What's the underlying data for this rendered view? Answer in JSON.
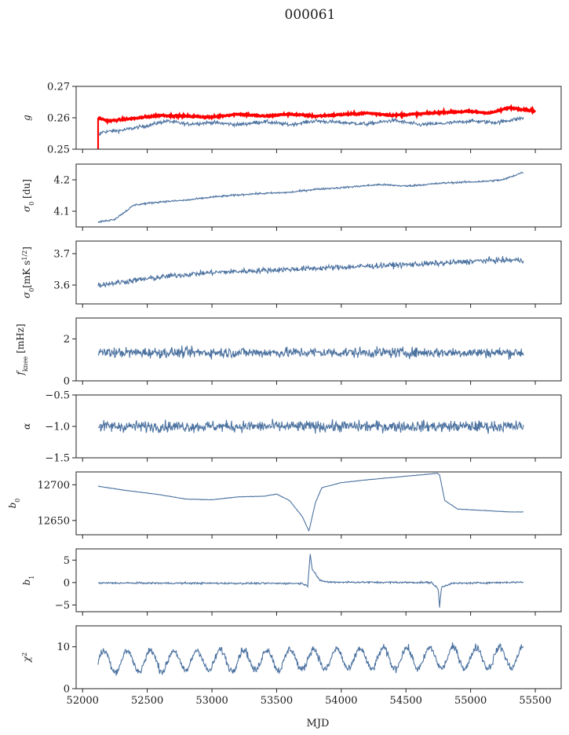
{
  "figure": {
    "title": "000061",
    "xlabel": "MJD"
  },
  "chart_data": {
    "type": "line",
    "xlim": [
      51950,
      55700
    ],
    "xticks": [
      52000,
      52500,
      53000,
      53500,
      54000,
      54500,
      55000,
      55500
    ],
    "xtick_labels": [
      "52000",
      "52500",
      "53000",
      "53500",
      "54000",
      "54500",
      "55000",
      "55500"
    ],
    "xrange": [
      52120,
      55410
    ],
    "line_color": "#4c72a0",
    "highlight_color": "#ff0000",
    "panels": [
      {
        "ylabel": "g",
        "ylim": [
          0.25,
          0.27
        ],
        "yticks": [
          0.25,
          0.26,
          0.27
        ],
        "ytick_labels": [
          "0.25",
          "0.26",
          "0.27"
        ],
        "series": [
          {
            "color": "#4c72a0",
            "points": [
              [
                52120,
                0.254
              ],
              [
                52150,
                0.2555
              ],
              [
                52300,
                0.256
              ],
              [
                52500,
                0.2575
              ],
              [
                52650,
                0.259
              ],
              [
                52800,
                0.258
              ],
              [
                53000,
                0.2585
              ],
              [
                53200,
                0.2578
              ],
              [
                53400,
                0.2588
              ],
              [
                53600,
                0.2578
              ],
              [
                53800,
                0.259
              ],
              [
                54000,
                0.2585
              ],
              [
                54200,
                0.258
              ],
              [
                54400,
                0.2592
              ],
              [
                54600,
                0.2578
              ],
              [
                54800,
                0.2582
              ],
              [
                55000,
                0.259
              ],
              [
                55200,
                0.2585
              ],
              [
                55410,
                0.26
              ]
            ],
            "noise": 0.0006
          },
          {
            "color": "#ff0000",
            "points": [
              [
                52120,
                0.26
              ],
              [
                52200,
                0.259
              ],
              [
                52400,
                0.2598
              ],
              [
                52600,
                0.2608
              ],
              [
                52800,
                0.2605
              ],
              [
                53000,
                0.2602
              ],
              [
                53200,
                0.2612
              ],
              [
                53400,
                0.2605
              ],
              [
                53600,
                0.2612
              ],
              [
                53800,
                0.2605
              ],
              [
                54000,
                0.261
              ],
              [
                54200,
                0.2615
              ],
              [
                54400,
                0.2608
              ],
              [
                54600,
                0.2612
              ],
              [
                54800,
                0.2618
              ],
              [
                55000,
                0.262
              ],
              [
                55150,
                0.2615
              ],
              [
                55300,
                0.2632
              ],
              [
                55500,
                0.2622
              ]
            ],
            "noise": 0.0003,
            "width": 3.2
          }
        ]
      },
      {
        "ylabel": "σ0 [du]",
        "ylim": [
          4.05,
          4.25
        ],
        "yticks": [
          4.1,
          4.2
        ],
        "ytick_labels": [
          "4.1",
          "4.2"
        ],
        "series": [
          {
            "color": "#4c72a0",
            "points": [
              [
                52120,
                4.065
              ],
              [
                52250,
                4.075
              ],
              [
                52400,
                4.12
              ],
              [
                52600,
                4.13
              ],
              [
                52800,
                4.135
              ],
              [
                53000,
                4.145
              ],
              [
                53300,
                4.155
              ],
              [
                53600,
                4.16
              ],
              [
                53800,
                4.17
              ],
              [
                54000,
                4.175
              ],
              [
                54300,
                4.185
              ],
              [
                54500,
                4.18
              ],
              [
                54800,
                4.19
              ],
              [
                55100,
                4.195
              ],
              [
                55250,
                4.2
              ],
              [
                55410,
                4.225
              ]
            ],
            "noise": 0.003
          }
        ]
      },
      {
        "ylabel": "σ0[mK s^1/2]",
        "ylim": [
          3.54,
          3.74
        ],
        "yticks": [
          3.6,
          3.7
        ],
        "ytick_labels": [
          "3.6",
          "3.7"
        ],
        "series": [
          {
            "color": "#4c72a0",
            "points": [
              [
                52120,
                3.6
              ],
              [
                52400,
                3.615
              ],
              [
                52700,
                3.63
              ],
              [
                53000,
                3.64
              ],
              [
                53300,
                3.645
              ],
              [
                53600,
                3.65
              ],
              [
                53900,
                3.655
              ],
              [
                54200,
                3.66
              ],
              [
                54500,
                3.665
              ],
              [
                54800,
                3.67
              ],
              [
                55100,
                3.678
              ],
              [
                55410,
                3.68
              ]
            ],
            "noise": 0.009
          }
        ]
      },
      {
        "ylabel": "fknee [mHz]",
        "ylim": [
          0,
          3
        ],
        "yticks": [
          0,
          2
        ],
        "ytick_labels": [
          "0",
          "2"
        ],
        "series": [
          {
            "color": "#4c72a0",
            "points": [
              [
                52120,
                1.35
              ],
              [
                55410,
                1.35
              ]
            ],
            "noise": 0.25
          }
        ]
      },
      {
        "ylabel": "α",
        "ylim": [
          -1.5,
          -0.5
        ],
        "yticks": [
          -1.5,
          -1.0,
          -0.5
        ],
        "ytick_labels": [
          "−1.5",
          "−1.0",
          "−0.5"
        ],
        "series": [
          {
            "color": "#4c72a0",
            "points": [
              [
                52120,
                -1.0
              ],
              [
                55410,
                -1.0
              ]
            ],
            "noise": 0.09
          }
        ]
      },
      {
        "ylabel": "b0",
        "ylim": [
          12630,
          12718
        ],
        "yticks": [
          12650,
          12700
        ],
        "ytick_labels": [
          "12650",
          "12700"
        ],
        "series": [
          {
            "color": "#4c72a0",
            "points": [
              [
                52120,
                12698
              ],
              [
                52300,
                12693
              ],
              [
                52600,
                12686
              ],
              [
                52800,
                12680
              ],
              [
                53000,
                12679
              ],
              [
                53200,
                12683
              ],
              [
                53400,
                12684
              ],
              [
                53500,
                12687
              ],
              [
                53600,
                12678
              ],
              [
                53700,
                12655
              ],
              [
                53750,
                12635
              ],
              [
                53800,
                12675
              ],
              [
                53850,
                12696
              ],
              [
                54000,
                12703
              ],
              [
                54200,
                12707
              ],
              [
                54500,
                12712
              ],
              [
                54740,
                12716
              ],
              [
                54760,
                12714
              ],
              [
                54800,
                12678
              ],
              [
                54900,
                12666
              ],
              [
                55100,
                12664
              ],
              [
                55300,
                12662
              ],
              [
                55410,
                12662
              ]
            ],
            "noise": 0.3
          }
        ]
      },
      {
        "ylabel": "b1",
        "ylim": [
          -6.5,
          7.5
        ],
        "yticks": [
          -5,
          0,
          5
        ],
        "ytick_labels": [
          "−5",
          "0",
          "5"
        ],
        "series": [
          {
            "color": "#4c72a0",
            "points": [
              [
                52120,
                -0.1
              ],
              [
                53700,
                -0.2
              ],
              [
                53740,
                -0.8
              ],
              [
                53760,
                6.5
              ],
              [
                53775,
                3.0
              ],
              [
                53800,
                2.0
              ],
              [
                53830,
                0.5
              ],
              [
                53900,
                0.1
              ],
              [
                54700,
                0.0
              ],
              [
                54750,
                -1.5
              ],
              [
                54760,
                -5.5
              ],
              [
                54775,
                -1.0
              ],
              [
                54850,
                -0.2
              ],
              [
                55410,
                0.1
              ]
            ],
            "noise": 0.2
          }
        ]
      },
      {
        "ylabel": "χ2",
        "ylim": [
          0,
          15
        ],
        "yticks": [
          0,
          10
        ],
        "ytick_labels": [
          "0",
          "10"
        ],
        "series": [
          {
            "color": "#4c72a0",
            "points": [
              [
                52120,
                6.5
              ],
              [
                55410,
                7.5
              ]
            ],
            "noise": 0.9,
            "oscillation": {
              "amplitude": 2.5,
              "period_days": 180
            }
          }
        ]
      }
    ]
  }
}
